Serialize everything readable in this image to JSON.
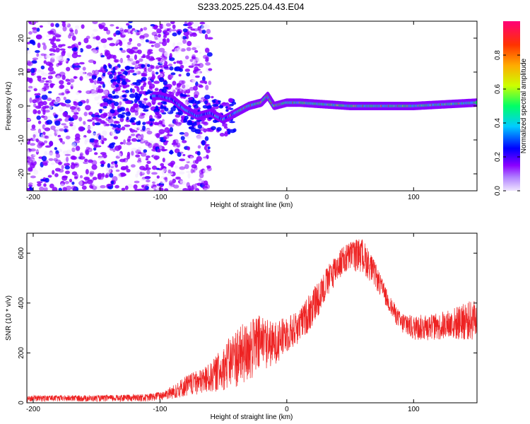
{
  "title": "S233.2025.225.04.43.E04",
  "chart_data": [
    {
      "type": "heatmap",
      "name": "spectrogram",
      "xlabel": "Height of straight line (km)",
      "ylabel": "Frequency (Hz)",
      "xlim": [
        -205,
        150
      ],
      "ylim": [
        -25,
        25
      ],
      "xticks": [
        -200,
        -100,
        0,
        100
      ],
      "yticks": [
        -20,
        -10,
        0,
        10,
        20
      ],
      "colorbar": {
        "label": "Normalized spectral amplitude",
        "range": [
          0,
          1
        ],
        "ticks": [
          0.0,
          0.2,
          0.4,
          0.6,
          0.8
        ],
        "colormap": [
          "#f0e6ff",
          "#8a00ff",
          "#0000ff",
          "#00ccff",
          "#00ff66",
          "#ccff00",
          "#ffaa00",
          "#ff3300",
          "#ff0077"
        ]
      },
      "ridge": {
        "description": "dominant frequency track",
        "x": [
          -100,
          -90,
          -80,
          -70,
          -60,
          -50,
          -40,
          -30,
          -20,
          -15,
          -10,
          0,
          10,
          50,
          100,
          150
        ],
        "y": [
          3,
          2,
          -1,
          -3,
          -2,
          -4,
          -2,
          0,
          1,
          3,
          0,
          1,
          1,
          0,
          0,
          1
        ]
      }
    },
    {
      "type": "line",
      "name": "snr",
      "xlabel": "Height of straight line (km)",
      "ylabel": "SNR (10 * v/v)",
      "xlim": [
        -205,
        150
      ],
      "ylim": [
        0,
        680
      ],
      "xticks": [
        -200,
        -100,
        0,
        100
      ],
      "yticks": [
        0,
        200,
        400,
        600
      ],
      "color": "#ee2222",
      "envelope": {
        "x": [
          -205,
          -150,
          -110,
          -100,
          -90,
          -80,
          -70,
          -60,
          -50,
          -40,
          -30,
          -20,
          -10,
          0,
          10,
          20,
          30,
          40,
          50,
          60,
          70,
          80,
          90,
          100,
          120,
          150
        ],
        "lo": [
          5,
          5,
          5,
          10,
          15,
          25,
          30,
          40,
          50,
          60,
          80,
          120,
          150,
          200,
          240,
          300,
          400,
          490,
          530,
          520,
          460,
          370,
          280,
          250,
          250,
          250
        ],
        "hi": [
          30,
          30,
          35,
          45,
          70,
          110,
          130,
          160,
          230,
          300,
          330,
          360,
          320,
          350,
          370,
          460,
          530,
          610,
          650,
          660,
          560,
          440,
          360,
          350,
          360,
          420
        ]
      }
    }
  ]
}
